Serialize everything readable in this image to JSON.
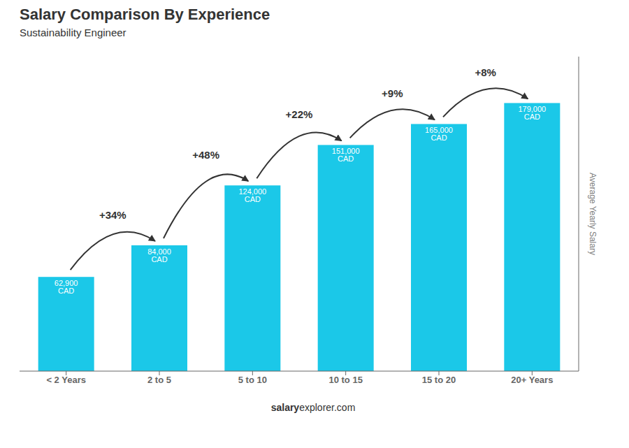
{
  "chart_data": {
    "type": "bar",
    "title": "Salary Comparison By Experience",
    "subtitle": "Sustainability Engineer",
    "categories": [
      "< 2 Years",
      "2 to 5",
      "5 to 10",
      "10 to 15",
      "15 to 20",
      "20+ Years"
    ],
    "values": [
      62900,
      84000,
      124000,
      151000,
      165000,
      179000
    ],
    "value_labels": [
      "62,900 CAD",
      "84,000 CAD",
      "124,000 CAD",
      "151,000 CAD",
      "165,000 CAD",
      "179,000 CAD"
    ],
    "data_labels": true,
    "color": "#1bc8e8",
    "ylabel": "Average Yearly Salary",
    "ylim": [
      0,
      210000
    ],
    "tick_labels": "x",
    "grid": false,
    "annotations": [
      "+34%",
      "+48%",
      "+22%",
      "+9%",
      "+8%"
    ],
    "footer": [
      "salary",
      "explorer.com"
    ]
  }
}
